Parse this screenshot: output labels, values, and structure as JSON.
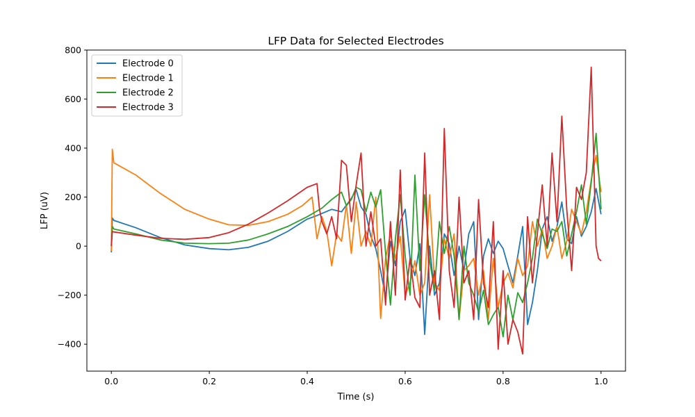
{
  "chart_data": {
    "type": "line",
    "title": "LFP Data for Selected Electrodes",
    "xlabel": "Time (s)",
    "ylabel": "LFP (uV)",
    "xlim": [
      -0.05,
      1.05
    ],
    "ylim": [
      -510,
      800
    ],
    "xticks": [
      0.0,
      0.2,
      0.4,
      0.6,
      0.8,
      1.0
    ],
    "xtick_labels": [
      "0.0",
      "0.2",
      "0.4",
      "0.6",
      "0.8",
      "1.0"
    ],
    "yticks": [
      -400,
      -200,
      0,
      200,
      400,
      600,
      800
    ],
    "ytick_labels": [
      "−400",
      "−200",
      "0",
      "200",
      "400",
      "600",
      "800"
    ],
    "grid": false,
    "legend_position": "top-left",
    "series": [
      {
        "name": "Electrode 0",
        "color": "#1f77b4",
        "x": [
          0,
          0.002,
          0.005,
          0.05,
          0.1,
          0.15,
          0.2,
          0.24,
          0.28,
          0.32,
          0.36,
          0.4,
          0.42,
          0.45,
          0.47,
          0.49,
          0.5,
          0.51,
          0.52,
          0.53,
          0.54,
          0.55,
          0.56,
          0.57,
          0.58,
          0.59,
          0.6,
          0.61,
          0.62,
          0.63,
          0.64,
          0.65,
          0.66,
          0.67,
          0.68,
          0.69,
          0.7,
          0.71,
          0.72,
          0.73,
          0.74,
          0.75,
          0.76,
          0.77,
          0.78,
          0.79,
          0.8,
          0.81,
          0.82,
          0.83,
          0.84,
          0.85,
          0.86,
          0.87,
          0.88,
          0.89,
          0.9,
          0.91,
          0.92,
          0.93,
          0.94,
          0.95,
          0.96,
          0.97,
          0.98,
          0.99,
          1.0
        ],
        "y": [
          -25,
          115,
          105,
          75,
          35,
          5,
          -10,
          -15,
          -5,
          20,
          60,
          110,
          125,
          150,
          140,
          195,
          230,
          160,
          130,
          40,
          -10,
          -100,
          -210,
          20,
          -80,
          100,
          150,
          -50,
          -120,
          10,
          -360,
          0,
          -200,
          -150,
          50,
          10,
          -120,
          0,
          -100,
          50,
          100,
          -300,
          -40,
          30,
          -30,
          20,
          -10,
          -80,
          -150,
          -40,
          80,
          -320,
          -230,
          -100,
          70,
          120,
          20,
          80,
          180,
          30,
          10,
          120,
          40,
          80,
          140,
          235,
          130
        ]
      },
      {
        "name": "Electrode 1",
        "color": "#ff7f0e",
        "x": [
          0,
          0.002,
          0.005,
          0.05,
          0.1,
          0.15,
          0.2,
          0.24,
          0.28,
          0.32,
          0.36,
          0.39,
          0.41,
          0.42,
          0.43,
          0.44,
          0.45,
          0.46,
          0.47,
          0.48,
          0.49,
          0.5,
          0.51,
          0.52,
          0.53,
          0.54,
          0.55,
          0.56,
          0.57,
          0.58,
          0.59,
          0.6,
          0.61,
          0.62,
          0.63,
          0.64,
          0.65,
          0.66,
          0.67,
          0.68,
          0.69,
          0.7,
          0.71,
          0.72,
          0.73,
          0.74,
          0.75,
          0.76,
          0.77,
          0.78,
          0.79,
          0.8,
          0.81,
          0.82,
          0.83,
          0.84,
          0.85,
          0.86,
          0.87,
          0.88,
          0.89,
          0.9,
          0.91,
          0.92,
          0.93,
          0.94,
          0.95,
          0.96,
          0.97,
          0.98,
          0.99,
          1.0
        ],
        "y": [
          -20,
          395,
          340,
          290,
          215,
          150,
          110,
          87,
          85,
          100,
          130,
          165,
          200,
          30,
          120,
          60,
          -80,
          50,
          20,
          170,
          -30,
          180,
          0,
          60,
          0,
          200,
          -295,
          -50,
          50,
          -50,
          40,
          -200,
          -150,
          -60,
          -200,
          -150,
          210,
          -150,
          -180,
          30,
          -50,
          50,
          -300,
          -100,
          -80,
          -50,
          -200,
          -100,
          -300,
          -50,
          -250,
          -150,
          -110,
          -170,
          -50,
          -120,
          -80,
          100,
          0,
          70,
          -50,
          0,
          80,
          -50,
          20,
          150,
          100,
          50,
          140,
          270,
          370,
          220
        ]
      },
      {
        "name": "Electrode 2",
        "color": "#2ca02c",
        "x": [
          0,
          0.002,
          0.005,
          0.05,
          0.1,
          0.15,
          0.2,
          0.24,
          0.28,
          0.32,
          0.36,
          0.4,
          0.43,
          0.45,
          0.47,
          0.48,
          0.49,
          0.5,
          0.51,
          0.52,
          0.53,
          0.54,
          0.55,
          0.56,
          0.57,
          0.58,
          0.59,
          0.6,
          0.61,
          0.62,
          0.63,
          0.64,
          0.65,
          0.66,
          0.67,
          0.68,
          0.69,
          0.7,
          0.71,
          0.72,
          0.73,
          0.74,
          0.75,
          0.76,
          0.77,
          0.78,
          0.79,
          0.8,
          0.81,
          0.82,
          0.83,
          0.84,
          0.85,
          0.86,
          0.87,
          0.88,
          0.89,
          0.9,
          0.91,
          0.92,
          0.93,
          0.94,
          0.95,
          0.96,
          0.97,
          0.98,
          0.99,
          1.0
        ],
        "y": [
          0,
          80,
          70,
          50,
          25,
          12,
          10,
          12,
          25,
          50,
          80,
          120,
          155,
          190,
          220,
          165,
          190,
          240,
          230,
          140,
          220,
          160,
          230,
          -30,
          -240,
          30,
          210,
          -40,
          -200,
          290,
          -100,
          210,
          -60,
          -180,
          100,
          -30,
          80,
          -40,
          -300,
          0,
          -150,
          -200,
          -270,
          -180,
          -320,
          -280,
          -250,
          -370,
          -200,
          -300,
          -190,
          -230,
          -150,
          -50,
          110,
          50,
          -10,
          70,
          60,
          100,
          -40,
          50,
          140,
          250,
          90,
          260,
          460,
          150
        ]
      },
      {
        "name": "Electrode 3",
        "color": "#d62728",
        "x": [
          0,
          0.002,
          0.005,
          0.05,
          0.1,
          0.15,
          0.2,
          0.24,
          0.28,
          0.32,
          0.36,
          0.4,
          0.42,
          0.425,
          0.43,
          0.44,
          0.45,
          0.46,
          0.47,
          0.48,
          0.49,
          0.5,
          0.51,
          0.52,
          0.53,
          0.54,
          0.55,
          0.56,
          0.57,
          0.58,
          0.59,
          0.6,
          0.61,
          0.62,
          0.63,
          0.64,
          0.65,
          0.66,
          0.67,
          0.68,
          0.69,
          0.7,
          0.71,
          0.72,
          0.73,
          0.74,
          0.75,
          0.76,
          0.77,
          0.78,
          0.79,
          0.8,
          0.81,
          0.82,
          0.83,
          0.84,
          0.85,
          0.86,
          0.87,
          0.88,
          0.89,
          0.9,
          0.91,
          0.92,
          0.93,
          0.94,
          0.95,
          0.96,
          0.97,
          0.98,
          0.99,
          0.995,
          1.0
        ],
        "y": [
          0,
          60,
          58,
          45,
          32,
          28,
          35,
          55,
          90,
          135,
          185,
          240,
          255,
          150,
          100,
          50,
          120,
          30,
          350,
          330,
          100,
          250,
          380,
          0,
          140,
          0,
          30,
          -240,
          100,
          -200,
          310,
          -220,
          -50,
          -210,
          -250,
          380,
          -200,
          -100,
          -300,
          480,
          -100,
          -250,
          200,
          -150,
          -100,
          -300,
          190,
          -150,
          -250,
          100,
          -420,
          -100,
          -400,
          -300,
          -350,
          -440,
          120,
          -150,
          50,
          250,
          0,
          380,
          100,
          530,
          150,
          -100,
          240,
          190,
          300,
          730,
          0,
          -50,
          -60
        ]
      }
    ]
  }
}
